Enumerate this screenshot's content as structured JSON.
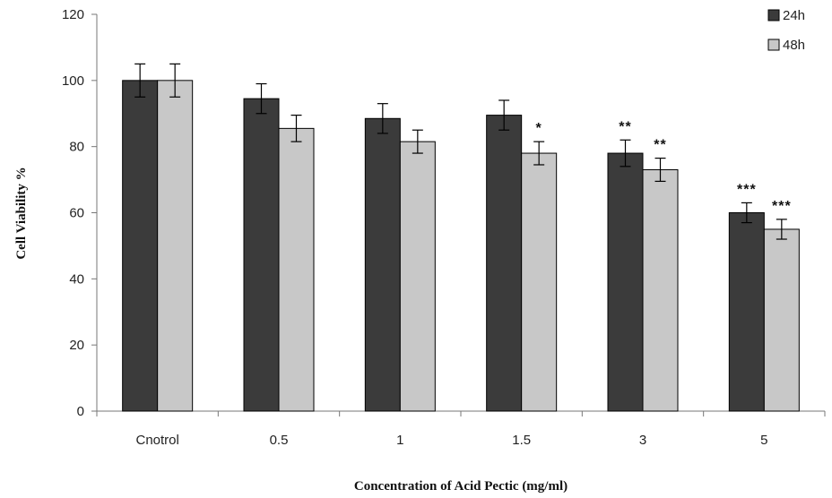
{
  "chart_data": {
    "type": "bar",
    "categories": [
      "Cnotrol",
      "0.5",
      "1",
      "1.5",
      "3",
      "5"
    ],
    "series": [
      {
        "name": "24h",
        "color": "#3b3b3b",
        "values": [
          100,
          94.5,
          88.5,
          89.5,
          78,
          60
        ],
        "errors": [
          5,
          4.5,
          4.5,
          4.5,
          4,
          3
        ],
        "significance": [
          "",
          "",
          "",
          "",
          "**",
          "***"
        ]
      },
      {
        "name": "48h",
        "color": "#c8c8c8",
        "values": [
          100,
          85.5,
          81.5,
          78,
          73,
          55
        ],
        "errors": [
          5,
          4,
          3.5,
          3.5,
          3.5,
          3
        ],
        "significance": [
          "",
          "",
          "",
          "*",
          "**",
          "***"
        ]
      }
    ],
    "xlabel": "Concentration of Acid Pectic (mg/ml)",
    "ylabel": "Cell Viability %",
    "ylim": [
      0,
      120
    ],
    "yticks": [
      0,
      20,
      40,
      60,
      80,
      100,
      120
    ],
    "grid": false,
    "legend_position": "top-right"
  }
}
